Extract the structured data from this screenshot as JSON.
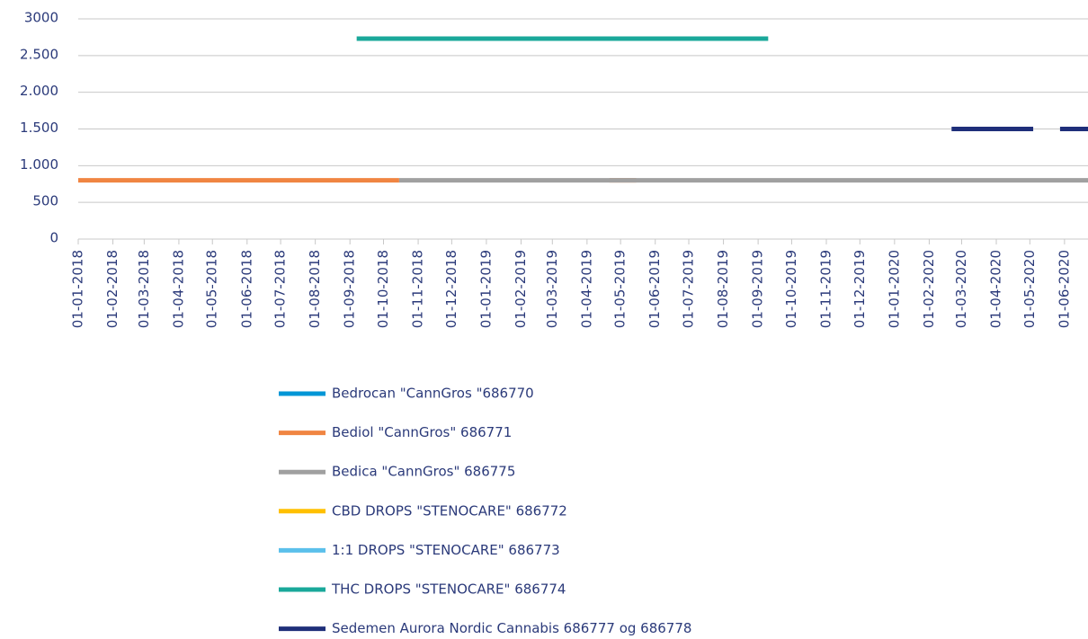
{
  "chart_data": {
    "type": "line",
    "xlim": [
      "01-01-2018",
      "22-06-2020"
    ],
    "xticks": [
      "01-01-2018",
      "01-02-2018",
      "01-03-2018",
      "01-04-2018",
      "01-05-2018",
      "01-06-2018",
      "01-07-2018",
      "01-08-2018",
      "01-09-2018",
      "01-10-2018",
      "01-11-2018",
      "01-12-2018",
      "01-01-2019",
      "01-02-2019",
      "01-03-2019",
      "01-04-2019",
      "01-05-2019",
      "01-06-2019",
      "01-07-2019",
      "01-08-2019",
      "01-09-2019",
      "01-10-2019",
      "01-11-2019",
      "01-12-2019",
      "01-01-2020",
      "01-02-2020",
      "01-03-2020",
      "01-04-2020",
      "01-05-2020",
      "01-06-2020"
    ],
    "ylim": [
      0,
      3000
    ],
    "yticks": [
      0,
      500,
      {
        "value": 1000,
        "label": "1.000"
      },
      {
        "value": 1500,
        "label": "1.500"
      },
      {
        "value": 2000,
        "label": "2.000"
      },
      {
        "value": 2500,
        "label": "2.500"
      },
      3000
    ],
    "grid": true,
    "legend": "bottom",
    "series": [
      {
        "name": "Bedrocan \"CannGros \"686770",
        "color": "#0096d6",
        "x": [],
        "values": []
      },
      {
        "name": "Bediol \"CannGros\" 686771",
        "color": "#f08542",
        "x": [
          "01-01-2018",
          "15-10-2018",
          "16-10-2018",
          "21-04-2019",
          "15-05-2019"
        ],
        "values": [
          800,
          800,
          null,
          800,
          800
        ]
      },
      {
        "name": "Bedica \"CannGros\" 686775",
        "color": "#a0a0a0",
        "x": [
          "15-10-2018",
          "22-06-2020"
        ],
        "values": [
          800,
          800
        ]
      },
      {
        "name": "CBD DROPS \"STENOCARE\" 686772",
        "color": "#ffc000",
        "x": [],
        "values": []
      },
      {
        "name": "1:1 DROPS \"STENOCARE\" 686773",
        "color": "#5bc0eb",
        "x": [],
        "values": []
      },
      {
        "name": "THC DROPS \"STENOCARE\" 686774",
        "color": "#1aa89a",
        "x": [
          "07-09-2018",
          "10-09-2019"
        ],
        "values": [
          2730,
          2730
        ]
      },
      {
        "name": "Sedemen Aurora Nordic Cannabis 686777 og 686778",
        "color": "#1f2f7a",
        "x": [
          "21-02-2020",
          "04-05-2020",
          "15-05-2020",
          "28-05-2020",
          "22-06-2020"
        ],
        "values": [
          1500,
          1500,
          null,
          1500,
          1500
        ]
      }
    ]
  }
}
